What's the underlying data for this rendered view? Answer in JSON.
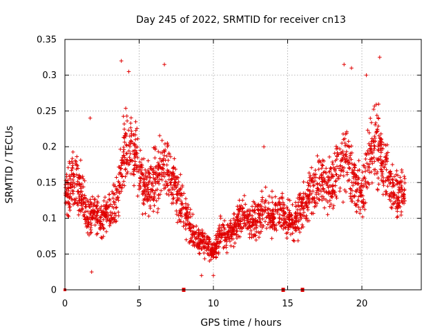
{
  "chart_data": {
    "type": "scatter",
    "title": "Day 245 of 2022, SRMTID for receiver cn13",
    "xlabel": "GPS time / hours",
    "ylabel": "SRMTID / TECUs",
    "xlim": [
      0,
      24
    ],
    "ylim": [
      0,
      0.35
    ],
    "grid": true,
    "marker": "+",
    "color": "#e00000",
    "x_ticks": [
      0,
      5,
      10,
      15,
      20
    ],
    "x_tick_labels": [
      "0",
      "5",
      "10",
      "15",
      "20"
    ],
    "y_ticks": [
      0,
      0.05,
      0.1,
      0.15,
      0.2,
      0.25,
      0.3,
      0.35
    ],
    "y_tick_labels": [
      "0",
      "0.05",
      "0.1",
      "0.15",
      "0.2",
      "0.25",
      "0.3",
      "0.35"
    ],
    "zero_markers_x": [
      8,
      14.7,
      16
    ],
    "trend": [
      {
        "x": 0,
        "y": 0.13
      },
      {
        "x": 0.5,
        "y": 0.155
      },
      {
        "x": 1,
        "y": 0.14
      },
      {
        "x": 1.5,
        "y": 0.1
      },
      {
        "x": 2,
        "y": 0.11
      },
      {
        "x": 2.5,
        "y": 0.1
      },
      {
        "x": 3,
        "y": 0.11
      },
      {
        "x": 3.5,
        "y": 0.13
      },
      {
        "x": 4,
        "y": 0.19
      },
      {
        "x": 4.5,
        "y": 0.21
      },
      {
        "x": 5,
        "y": 0.16
      },
      {
        "x": 5.5,
        "y": 0.14
      },
      {
        "x": 6,
        "y": 0.15
      },
      {
        "x": 6.5,
        "y": 0.17
      },
      {
        "x": 7,
        "y": 0.17
      },
      {
        "x": 7.5,
        "y": 0.14
      },
      {
        "x": 8,
        "y": 0.11
      },
      {
        "x": 8.5,
        "y": 0.085
      },
      {
        "x": 9,
        "y": 0.07
      },
      {
        "x": 9.5,
        "y": 0.065
      },
      {
        "x": 10,
        "y": 0.05
      },
      {
        "x": 10.5,
        "y": 0.08
      },
      {
        "x": 11,
        "y": 0.075
      },
      {
        "x": 11.5,
        "y": 0.085
      },
      {
        "x": 12,
        "y": 0.11
      },
      {
        "x": 12.5,
        "y": 0.095
      },
      {
        "x": 13,
        "y": 0.1
      },
      {
        "x": 13.5,
        "y": 0.11
      },
      {
        "x": 14,
        "y": 0.105
      },
      {
        "x": 14.5,
        "y": 0.11
      },
      {
        "x": 15,
        "y": 0.095
      },
      {
        "x": 15.5,
        "y": 0.1
      },
      {
        "x": 16,
        "y": 0.11
      },
      {
        "x": 16.5,
        "y": 0.13
      },
      {
        "x": 17,
        "y": 0.14
      },
      {
        "x": 17.5,
        "y": 0.15
      },
      {
        "x": 18,
        "y": 0.15
      },
      {
        "x": 18.5,
        "y": 0.17
      },
      {
        "x": 19,
        "y": 0.19
      },
      {
        "x": 19.5,
        "y": 0.15
      },
      {
        "x": 20,
        "y": 0.13
      },
      {
        "x": 20.5,
        "y": 0.19
      },
      {
        "x": 21,
        "y": 0.21
      },
      {
        "x": 21.5,
        "y": 0.18
      },
      {
        "x": 22,
        "y": 0.14
      },
      {
        "x": 22.5,
        "y": 0.13
      },
      {
        "x": 22.9,
        "y": 0.14
      }
    ],
    "peaks": [
      {
        "x": 3.8,
        "y": 0.32
      },
      {
        "x": 4.3,
        "y": 0.305
      },
      {
        "x": 6.7,
        "y": 0.315
      },
      {
        "x": 18.8,
        "y": 0.315
      },
      {
        "x": 19.3,
        "y": 0.31
      },
      {
        "x": 21.2,
        "y": 0.325
      },
      {
        "x": 20.3,
        "y": 0.3
      },
      {
        "x": 1.7,
        "y": 0.24
      },
      {
        "x": 13.4,
        "y": 0.2
      },
      {
        "x": 9.2,
        "y": 0.02
      },
      {
        "x": 10.0,
        "y": 0.02
      },
      {
        "x": 1.8,
        "y": 0.025
      }
    ]
  }
}
